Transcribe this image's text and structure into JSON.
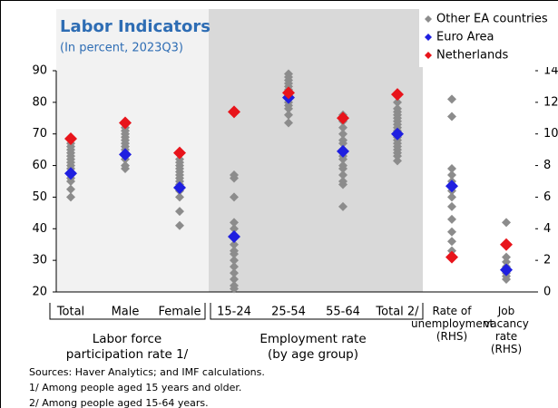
{
  "chart_data": {
    "type": "strip",
    "title": "Labor Indicators",
    "subtitle": "(In percent, 2023Q3)",
    "categories": [
      "Total",
      "Male",
      "Female",
      "15-24",
      "25-54",
      "55-64",
      "Total 2/",
      "Rate of unemployment (RHS)",
      "Job vacancy rate (RHS)"
    ],
    "category_axis": [
      "y",
      "y",
      "y",
      "y",
      "y",
      "y",
      "y",
      "y2",
      "y2"
    ],
    "groups": [
      "Labor force participation rate 1/",
      "Employment rate (by age group)"
    ],
    "series": [
      {
        "name": "Other EA countries",
        "color": "#8c8c8c",
        "values": [
          [
            50,
            52.5,
            55,
            56,
            57,
            59,
            60,
            61,
            62,
            63,
            64,
            65,
            66,
            67
          ],
          [
            59,
            60,
            62,
            64,
            65,
            66,
            67,
            68,
            69,
            70,
            71,
            72
          ],
          [
            41,
            45.5,
            50,
            52,
            54,
            55,
            56,
            57,
            58,
            59,
            60,
            61,
            62
          ],
          [
            21,
            22,
            24,
            26,
            28,
            30,
            32,
            33,
            35,
            37,
            40,
            42,
            50,
            56,
            57
          ],
          [
            73.5,
            76,
            78,
            79,
            80,
            81,
            82,
            83,
            84,
            85,
            86,
            87,
            88,
            89
          ],
          [
            47,
            54,
            55,
            57,
            59,
            60,
            62,
            63,
            65,
            67,
            68,
            70,
            72,
            74,
            75.5,
            76
          ],
          [
            61.5,
            63,
            64,
            65,
            66,
            67,
            68,
            69,
            70,
            71,
            72,
            73,
            74,
            75,
            76,
            77,
            78,
            80,
            82
          ],
          [
            2.6,
            3.2,
            3.8,
            4.6,
            5.4,
            6,
            6.4,
            7,
            7.4,
            7.8,
            11.1,
            12.2
          ],
          [
            0.8,
            1,
            1.2,
            1.4,
            1.6,
            1.9,
            2.2,
            4.4
          ]
        ]
      },
      {
        "name": "Euro Area",
        "color": "#1f1fe0",
        "values": [
          57.5,
          63.5,
          53,
          37.5,
          81.5,
          64.5,
          70,
          6.7,
          1.4
        ]
      },
      {
        "name": "Netherlands",
        "color": "#e8141b",
        "values": [
          68.5,
          73.5,
          64,
          77,
          83,
          75,
          82.5,
          2.2,
          3
        ]
      }
    ],
    "ylim": [
      20,
      90
    ],
    "yticks": [
      20,
      30,
      40,
      50,
      60,
      70,
      80,
      90
    ],
    "y2lim": [
      0,
      14
    ],
    "y2ticks": [
      0,
      2,
      4,
      6,
      8,
      10,
      12,
      14
    ],
    "notes": [
      "Sources: Haver Analytics; and IMF calculations.",
      "1/ Among people aged 15 years and older.",
      "2/ Among people aged 15-64 years."
    ]
  }
}
